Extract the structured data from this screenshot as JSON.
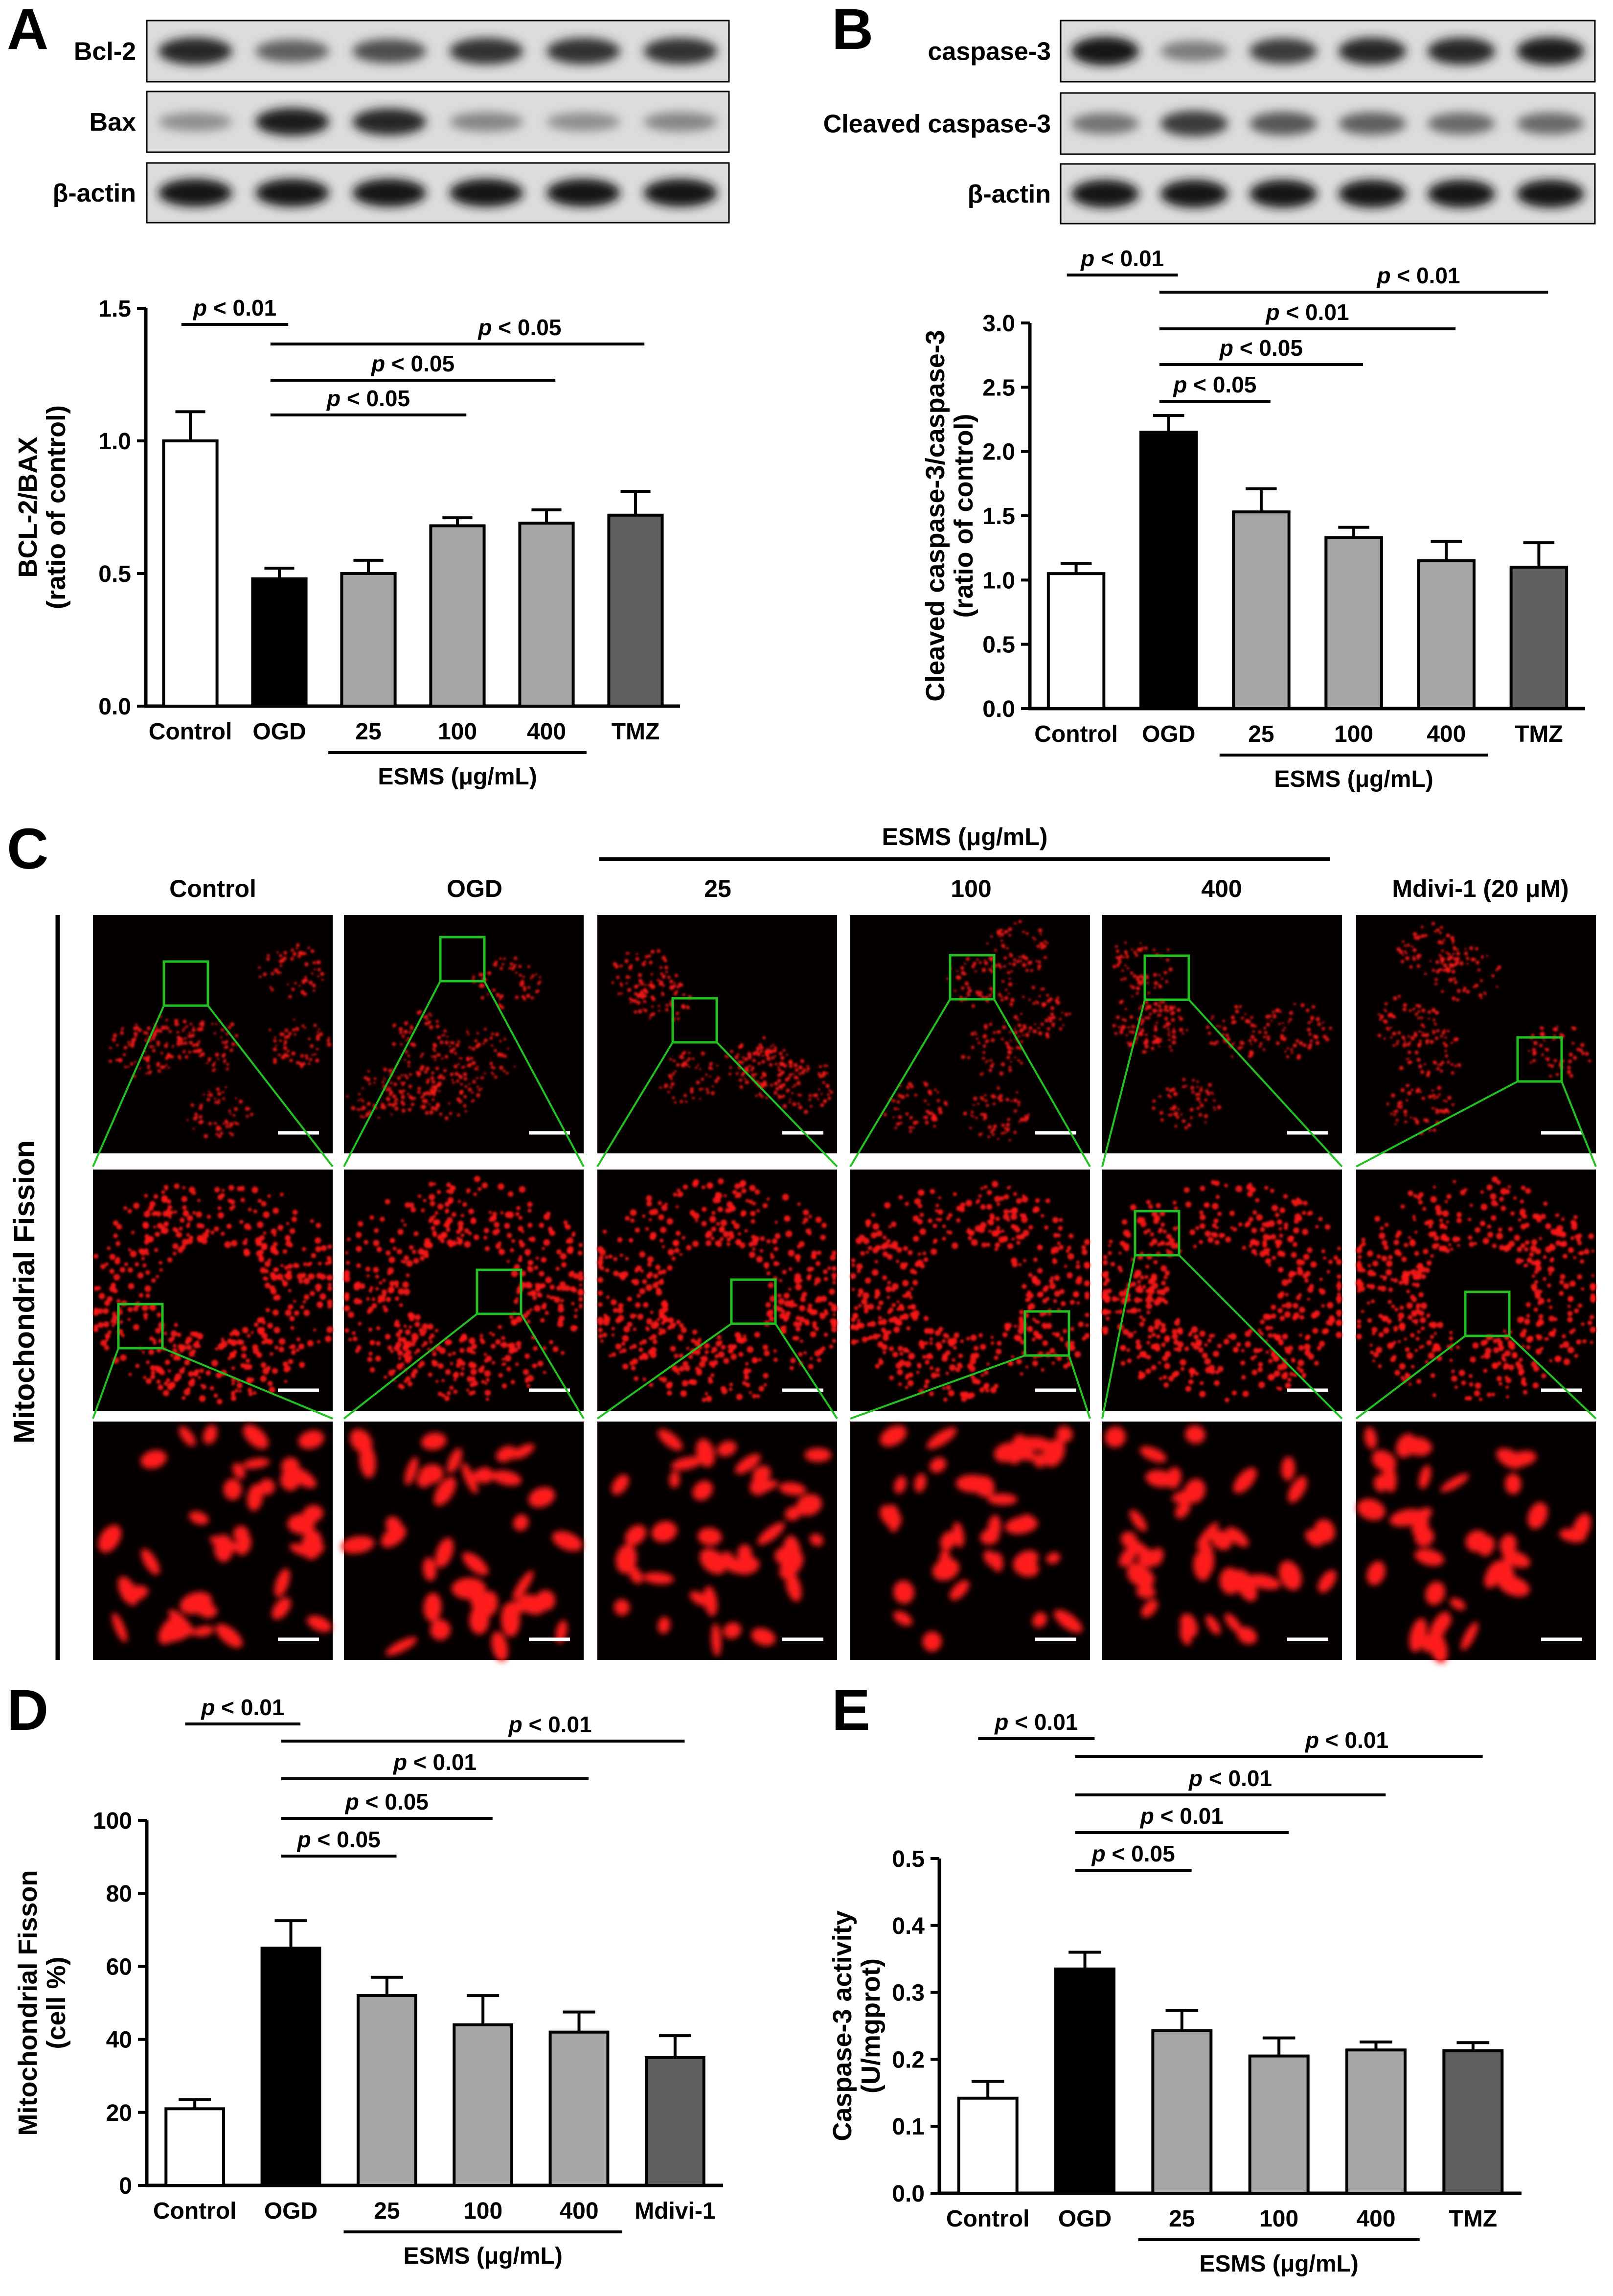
{
  "panels": {
    "A": {
      "letter": "A",
      "blot_labels": [
        "Bcl-2",
        "Bax",
        "β-actin"
      ],
      "blot_intensity": [
        [
          0.85,
          0.55,
          0.65,
          0.8,
          0.8,
          0.8
        ],
        [
          0.3,
          0.9,
          0.85,
          0.35,
          0.3,
          0.35
        ],
        [
          0.95,
          0.95,
          0.95,
          0.95,
          0.95,
          0.95
        ]
      ],
      "ylabel_lines": [
        "BCL-2/BAX",
        "(ratio of control)"
      ],
      "ticks": [
        "0.0",
        "0.5",
        "1.0",
        "1.5"
      ],
      "categories": [
        "Control",
        "OGD",
        "25",
        "100",
        "400",
        "TMZ"
      ],
      "group_label": "ESMS (μg/mL)",
      "sig": [
        "p < 0.01",
        "p < 0.05",
        "p < 0.05",
        "p < 0.05"
      ]
    },
    "B": {
      "letter": "B",
      "blot_labels": [
        "caspase-3",
        "Cleaved caspase-3",
        "β-actin"
      ],
      "blot_intensity": [
        [
          0.95,
          0.4,
          0.75,
          0.85,
          0.85,
          0.9
        ],
        [
          0.45,
          0.75,
          0.6,
          0.55,
          0.5,
          0.5
        ],
        [
          0.95,
          0.95,
          0.95,
          0.95,
          0.95,
          0.95
        ]
      ],
      "ylabel_lines": [
        "Cleaved caspase-3/caspase-3",
        "(ratio of control)"
      ],
      "ticks": [
        "0.0",
        "0.5",
        "1.0",
        "1.5",
        "2.0",
        "2.5",
        "3.0"
      ],
      "categories": [
        "Control",
        "OGD",
        "25",
        "100",
        "400",
        "TMZ"
      ],
      "group_label": "ESMS (μg/mL)",
      "sig": [
        "p < 0.01",
        "p < 0.01",
        "p < 0.01",
        "p < 0.05",
        "p < 0.05"
      ]
    },
    "C": {
      "letter": "C",
      "group_label": "ESMS (μg/mL)",
      "column_labels": [
        "Control",
        "OGD",
        "25",
        "100",
        "400",
        "Mdivi-1 (20 μM)"
      ],
      "row_label": "Mitochondrial Fission"
    },
    "D": {
      "letter": "D",
      "ylabel_lines": [
        "Mitochondrial Fisson",
        "(cell %)"
      ],
      "ticks": [
        "0",
        "20",
        "40",
        "60",
        "80",
        "100"
      ],
      "categories": [
        "Control",
        "OGD",
        "25",
        "100",
        "400",
        "Mdivi-1"
      ],
      "group_label": "ESMS (μg/mL)",
      "sig": [
        "p < 0.01",
        "p < 0.01",
        "p < 0.01",
        "p < 0.05",
        "p < 0.05"
      ]
    },
    "E": {
      "letter": "E",
      "ylabel_lines": [
        "Caspase-3 activity",
        "(U/mgprot)"
      ],
      "ticks": [
        "0.0",
        "0.1",
        "0.2",
        "0.3",
        "0.4",
        "0.5"
      ],
      "categories": [
        "Control",
        "OGD",
        "25",
        "100",
        "400",
        "TMZ"
      ],
      "group_label": "ESMS (μg/mL)",
      "sig": [
        "p < 0.01",
        "p < 0.01",
        "p < 0.01",
        "p < 0.01",
        "p < 0.05"
      ]
    }
  },
  "colors": {
    "control": "#ffffff",
    "ogd": "#000000",
    "esms": "#a6a6a8",
    "positive_control": "#5e5e60",
    "micrograph_signal": "#ff1a1a",
    "zoom_box": "#22c022"
  },
  "chart_data": [
    {
      "panel": "A",
      "type": "bar",
      "categories": [
        "Control",
        "OGD",
        "25",
        "100",
        "400",
        "TMZ"
      ],
      "values": [
        1.0,
        0.48,
        0.5,
        0.68,
        0.69,
        0.72
      ],
      "errors": [
        0.11,
        0.04,
        0.05,
        0.03,
        0.05,
        0.09
      ],
      "ylabel": "BCL-2/BAX (ratio of control)",
      "ylim": [
        0,
        1.5
      ],
      "significance": [
        {
          "from": 0,
          "to": 1,
          "label": "p < 0.01"
        },
        {
          "from": 1,
          "to": 5,
          "label": "p < 0.05"
        },
        {
          "from": 1,
          "to": 4,
          "label": "p < 0.05"
        },
        {
          "from": 1,
          "to": 3,
          "label": "p < 0.05"
        }
      ]
    },
    {
      "panel": "B",
      "type": "bar",
      "categories": [
        "Control",
        "OGD",
        "25",
        "100",
        "400",
        "TMZ"
      ],
      "values": [
        1.05,
        2.15,
        1.53,
        1.33,
        1.15,
        1.1
      ],
      "errors": [
        0.08,
        0.13,
        0.18,
        0.08,
        0.15,
        0.19
      ],
      "ylabel": "Cleaved caspase-3/caspase-3 (ratio of control)",
      "ylim": [
        0,
        3.0
      ],
      "significance": [
        {
          "from": 0,
          "to": 1,
          "label": "p < 0.01"
        },
        {
          "from": 1,
          "to": 5,
          "label": "p < 0.01"
        },
        {
          "from": 1,
          "to": 4,
          "label": "p < 0.01"
        },
        {
          "from": 1,
          "to": 3,
          "label": "p < 0.05"
        },
        {
          "from": 1,
          "to": 2,
          "label": "p < 0.05"
        }
      ]
    },
    {
      "panel": "D",
      "type": "bar",
      "categories": [
        "Control",
        "OGD",
        "25",
        "100",
        "400",
        "Mdivi-1"
      ],
      "values": [
        21,
        65,
        52,
        44,
        42,
        35
      ],
      "errors": [
        2.5,
        7.5,
        5,
        8,
        5.5,
        6
      ],
      "ylabel": "Mitochondrial Fisson (cell %)",
      "ylim": [
        0,
        100
      ],
      "significance": [
        {
          "from": 0,
          "to": 1,
          "label": "p < 0.01"
        },
        {
          "from": 1,
          "to": 5,
          "label": "p < 0.01"
        },
        {
          "from": 1,
          "to": 4,
          "label": "p < 0.01"
        },
        {
          "from": 1,
          "to": 3,
          "label": "p < 0.05"
        },
        {
          "from": 1,
          "to": 2,
          "label": "p < 0.05"
        }
      ]
    },
    {
      "panel": "E",
      "type": "bar",
      "categories": [
        "Control",
        "OGD",
        "25",
        "100",
        "400",
        "TMZ"
      ],
      "values": [
        0.142,
        0.335,
        0.243,
        0.205,
        0.214,
        0.213
      ],
      "errors": [
        0.025,
        0.025,
        0.03,
        0.027,
        0.012,
        0.012
      ],
      "ylabel": "Caspase-3 activity (U/mgprot)",
      "ylim": [
        0,
        0.5
      ],
      "significance": [
        {
          "from": 0,
          "to": 1,
          "label": "p < 0.01"
        },
        {
          "from": 1,
          "to": 5,
          "label": "p < 0.01"
        },
        {
          "from": 1,
          "to": 4,
          "label": "p < 0.01"
        },
        {
          "from": 1,
          "to": 3,
          "label": "p < 0.01"
        },
        {
          "from": 1,
          "to": 2,
          "label": "p < 0.05"
        }
      ]
    }
  ]
}
